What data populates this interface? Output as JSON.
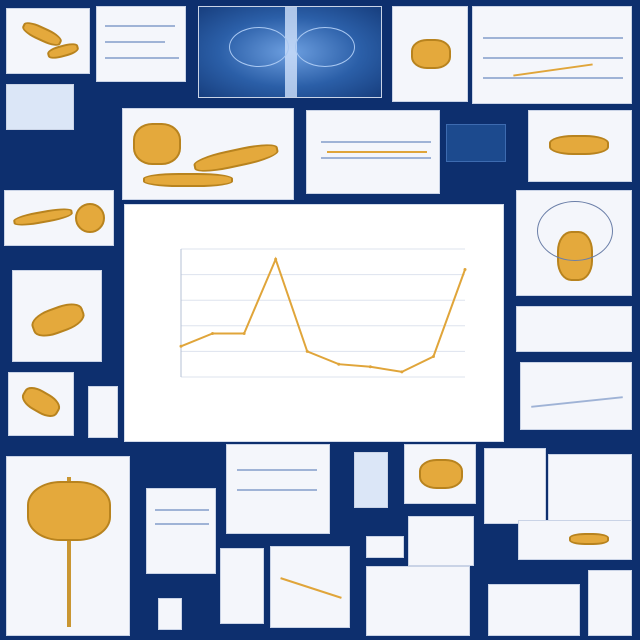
{
  "collage": {
    "tiles": [
      "spine-xray-tile",
      "joint-diagram-tile",
      "bone-chart-tile",
      "skeletal-tree-tile",
      "nerve-diagram-tile"
    ]
  },
  "chart_data": {
    "type": "line",
    "title": "",
    "categories": [
      "",
      "",
      "",
      "",
      "",
      "",
      "",
      "",
      "",
      ""
    ],
    "series": [
      {
        "values": [
          12,
          17,
          17,
          46,
          10,
          5,
          4,
          2,
          8,
          42
        ]
      }
    ],
    "ylim": [
      0,
      50
    ],
    "grid": true,
    "color": "#e0a53a"
  }
}
